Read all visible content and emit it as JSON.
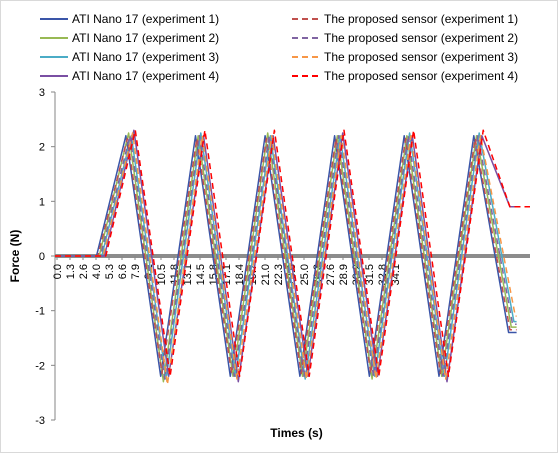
{
  "chart_data": {
    "type": "line",
    "xlabel": "Times (s)",
    "ylabel": "Force (N)",
    "ylim": [
      -3,
      3
    ],
    "y_ticks": [
      -3,
      -2,
      -1,
      0,
      1,
      2,
      3
    ],
    "x_range": [
      0.0,
      35.5
    ],
    "x_ticks": [
      "0.0",
      "1.3",
      "2.6",
      "4.0",
      "5.3",
      "6.6",
      "7.9",
      "9.2",
      "10.5",
      "11.8",
      "13.1",
      "14.5",
      "15.8",
      "17.1",
      "18.4",
      "19.7",
      "21.0",
      "22.3",
      "23.6",
      "25.0",
      "26.3",
      "27.6",
      "28.9",
      "30.2",
      "31.5",
      "32.8",
      "34.1"
    ],
    "grid": false,
    "legend": "top",
    "zero_line_color": "#8c8c8c",
    "series": [
      {
        "name": "ATI Nano 17 (experiment 1)",
        "color": "#3a55a8",
        "dash": "solid",
        "x": [
          0.0,
          3.1,
          5.3,
          7.9,
          10.5,
          13.1,
          15.7,
          18.3,
          20.9,
          23.5,
          26.1,
          28.7,
          31.3,
          33.9,
          34.5
        ],
        "y": [
          0,
          0,
          2.2,
          -2.2,
          2.2,
          -2.2,
          2.2,
          -2.2,
          2.2,
          -2.2,
          2.2,
          -2.2,
          2.2,
          -1.4,
          -1.4
        ]
      },
      {
        "name": "ATI Nano 17 (experiment 2)",
        "color": "#98b954",
        "dash": "solid",
        "x": [
          0.0,
          3.3,
          5.5,
          8.1,
          10.7,
          13.3,
          15.9,
          18.5,
          21.1,
          23.7,
          26.3,
          28.9,
          31.5,
          34.1,
          34.5
        ],
        "y": [
          0,
          0,
          2.25,
          -2.3,
          2.2,
          -2.2,
          2.25,
          -2.2,
          2.2,
          -2.25,
          2.2,
          -2.2,
          2.2,
          -1.3,
          -1.3
        ]
      },
      {
        "name": "ATI Nano 17 (experiment 3)",
        "color": "#4bacc6",
        "dash": "solid",
        "x": [
          0.0,
          3.5,
          5.7,
          8.3,
          10.9,
          13.5,
          16.1,
          18.7,
          21.3,
          23.9,
          26.5,
          29.1,
          31.7,
          34.3,
          34.5
        ],
        "y": [
          0,
          0,
          2.2,
          -2.25,
          2.25,
          -2.2,
          2.2,
          -2.25,
          2.2,
          -2.2,
          2.25,
          -2.2,
          2.25,
          -1.2,
          -1.2
        ]
      },
      {
        "name": "ATI Nano 17 (experiment 4)",
        "color": "#7a4fa3",
        "dash": "solid",
        "x": [
          0.0,
          3.7,
          5.9,
          8.5,
          11.1,
          13.7,
          16.3,
          18.9,
          21.5,
          24.1,
          26.7,
          29.3,
          31.9,
          34.0,
          34.5
        ],
        "y": [
          0,
          0,
          2.3,
          -2.2,
          2.2,
          -2.3,
          2.2,
          -2.2,
          2.25,
          -2.2,
          2.2,
          -2.3,
          2.2,
          0.9,
          0.9
        ]
      },
      {
        "name": "The proposed sensor (experiment 1)",
        "color": "#c0504d",
        "dash": "dashed",
        "x": [
          0.0,
          3.2,
          5.4,
          8.0,
          10.6,
          13.2,
          15.8,
          18.4,
          21.0,
          23.6,
          26.2,
          28.8,
          31.4,
          34.0,
          34.5
        ],
        "y": [
          0,
          0,
          2.15,
          -2.15,
          2.15,
          -2.15,
          2.15,
          -2.15,
          2.15,
          -2.15,
          2.15,
          -2.15,
          2.15,
          -1.35,
          -1.35
        ]
      },
      {
        "name": "The proposed sensor (experiment 2)",
        "color": "#8064a2",
        "dash": "dashed",
        "x": [
          0.0,
          3.4,
          5.6,
          8.2,
          10.8,
          13.4,
          16.0,
          18.6,
          21.2,
          23.8,
          26.4,
          29.0,
          31.6,
          34.2,
          34.5
        ],
        "y": [
          0,
          0,
          2.2,
          -2.25,
          2.2,
          -2.2,
          2.2,
          -2.2,
          2.2,
          -2.2,
          2.2,
          -2.2,
          2.2,
          -1.25,
          -1.25
        ]
      },
      {
        "name": "The proposed sensor (experiment 3)",
        "color": "#f79646",
        "dash": "dashed",
        "x": [
          0.0,
          3.6,
          5.8,
          8.4,
          11.0,
          13.6,
          16.2,
          18.8,
          21.4,
          24.0,
          26.6,
          29.2,
          31.8,
          34.4,
          34.5
        ],
        "y": [
          0,
          0,
          2.25,
          -2.35,
          2.2,
          -2.25,
          2.2,
          -2.25,
          2.2,
          -2.25,
          2.2,
          -2.25,
          2.2,
          -1.1,
          -1.1
        ]
      },
      {
        "name": "The proposed sensor (experiment 4)",
        "color": "#ff0000",
        "dash": "dashed",
        "x": [
          0.0,
          3.8,
          6.0,
          8.6,
          11.2,
          13.8,
          16.4,
          19.0,
          21.6,
          24.2,
          26.8,
          29.4,
          32.0,
          34.0,
          35.5
        ],
        "y": [
          0,
          0,
          2.3,
          -2.2,
          2.3,
          -2.2,
          2.3,
          -2.2,
          2.3,
          -2.2,
          2.3,
          -2.2,
          2.3,
          0.9,
          0.9
        ]
      }
    ]
  }
}
